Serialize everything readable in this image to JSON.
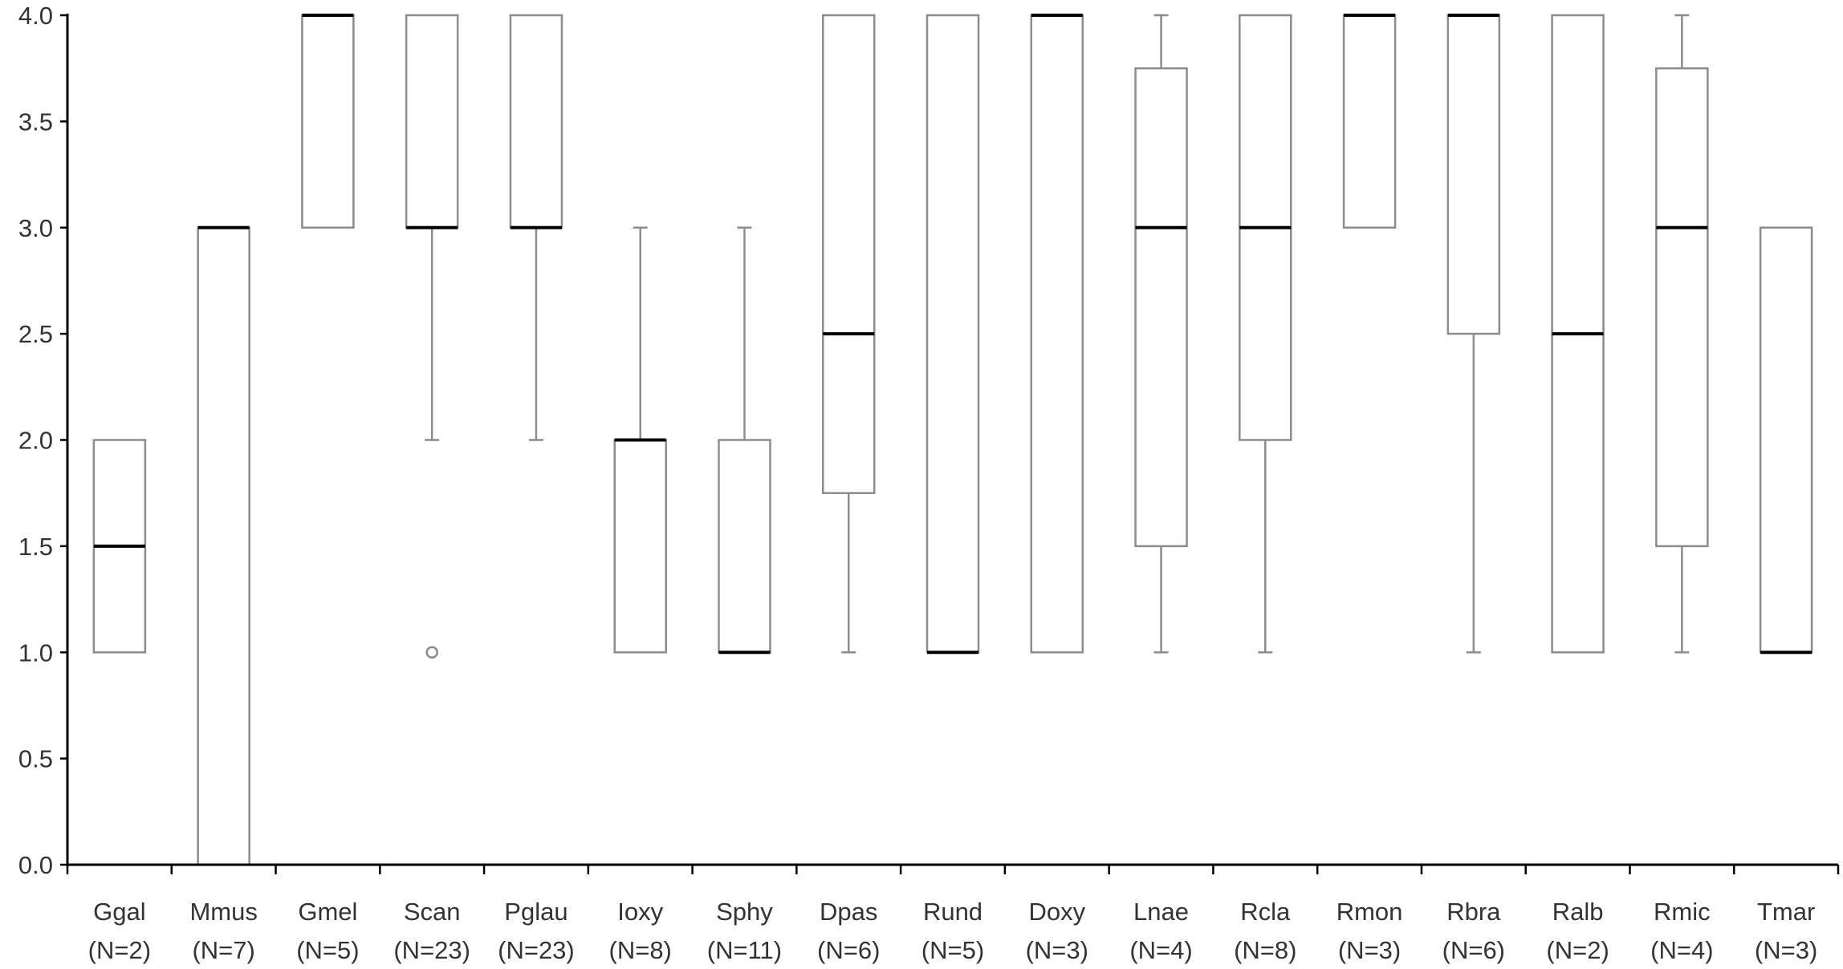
{
  "chart_data": {
    "type": "boxplot",
    "ylim": [
      0,
      4
    ],
    "yticks": [
      "0.0",
      "0.5",
      "1.0",
      "1.5",
      "2.0",
      "2.5",
      "3.0",
      "3.5",
      "4.0"
    ],
    "ytick_values": [
      0,
      0.5,
      1,
      1.5,
      2,
      2.5,
      3,
      3.5,
      4
    ],
    "categories": [
      "Ggal",
      "Mmus",
      "Gmel",
      "Scan",
      "Pglau",
      "Ioxy",
      "Sphy",
      "Dpas",
      "Rund",
      "Doxy",
      "Lnae",
      "Rcla",
      "Rmon",
      "Rbra",
      "Ralb",
      "Rmic",
      "Tmar"
    ],
    "counts": [
      "(N=2)",
      "(N=7)",
      "(N=5)",
      "(N=23)",
      "(N=23)",
      "(N=8)",
      "(N=11)",
      "(N=6)",
      "(N=5)",
      "(N=3)",
      "(N=4)",
      "(N=8)",
      "(N=3)",
      "(N=6)",
      "(N=2)",
      "(N=4)",
      "(N=3)"
    ],
    "boxes": [
      {
        "whisker_low": 1.0,
        "q1": 1.0,
        "median": 1.5,
        "q3": 2.0,
        "whisker_high": 2.0,
        "outliers": []
      },
      {
        "whisker_low": 0.0,
        "q1": 0.0,
        "median": 3.0,
        "q3": 3.0,
        "whisker_high": 3.0,
        "outliers": []
      },
      {
        "whisker_low": 3.0,
        "q1": 3.0,
        "median": 4.0,
        "q3": 4.0,
        "whisker_high": 4.0,
        "outliers": []
      },
      {
        "whisker_low": 2.0,
        "q1": 3.0,
        "median": 3.0,
        "q3": 4.0,
        "whisker_high": 4.0,
        "outliers": [
          1.0
        ]
      },
      {
        "whisker_low": 2.0,
        "q1": 3.0,
        "median": 3.0,
        "q3": 4.0,
        "whisker_high": 4.0,
        "outliers": []
      },
      {
        "whisker_low": 1.0,
        "q1": 1.0,
        "median": 2.0,
        "q3": 2.0,
        "whisker_high": 3.0,
        "outliers": []
      },
      {
        "whisker_low": 1.0,
        "q1": 1.0,
        "median": 1.0,
        "q3": 2.0,
        "whisker_high": 3.0,
        "outliers": []
      },
      {
        "whisker_low": 1.0,
        "q1": 1.75,
        "median": 2.5,
        "q3": 4.0,
        "whisker_high": 4.0,
        "outliers": []
      },
      {
        "whisker_low": 1.0,
        "q1": 1.0,
        "median": 1.0,
        "q3": 4.0,
        "whisker_high": 4.0,
        "outliers": []
      },
      {
        "whisker_low": 1.0,
        "q1": 1.0,
        "median": 4.0,
        "q3": 4.0,
        "whisker_high": 4.0,
        "outliers": []
      },
      {
        "whisker_low": 1.0,
        "q1": 1.5,
        "median": 3.0,
        "q3": 3.75,
        "whisker_high": 4.0,
        "outliers": []
      },
      {
        "whisker_low": 1.0,
        "q1": 2.0,
        "median": 3.0,
        "q3": 4.0,
        "whisker_high": 4.0,
        "outliers": []
      },
      {
        "whisker_low": 3.0,
        "q1": 3.0,
        "median": 4.0,
        "q3": 4.0,
        "whisker_high": 4.0,
        "outliers": []
      },
      {
        "whisker_low": 1.0,
        "q1": 2.5,
        "median": 4.0,
        "q3": 4.0,
        "whisker_high": 4.0,
        "outliers": []
      },
      {
        "whisker_low": 1.0,
        "q1": 1.0,
        "median": 2.5,
        "q3": 4.0,
        "whisker_high": 4.0,
        "outliers": []
      },
      {
        "whisker_low": 1.0,
        "q1": 1.5,
        "median": 3.0,
        "q3": 3.75,
        "whisker_high": 4.0,
        "outliers": []
      },
      {
        "whisker_low": 1.0,
        "q1": 1.0,
        "median": 1.0,
        "q3": 3.0,
        "whisker_high": 3.0,
        "outliers": []
      }
    ],
    "title": "",
    "xlabel": "",
    "ylabel": "",
    "grid": false,
    "legend": false,
    "colors": {
      "axis": "#000000",
      "box": "#8c8c8c",
      "median": "#000000",
      "text": "#333333"
    }
  }
}
